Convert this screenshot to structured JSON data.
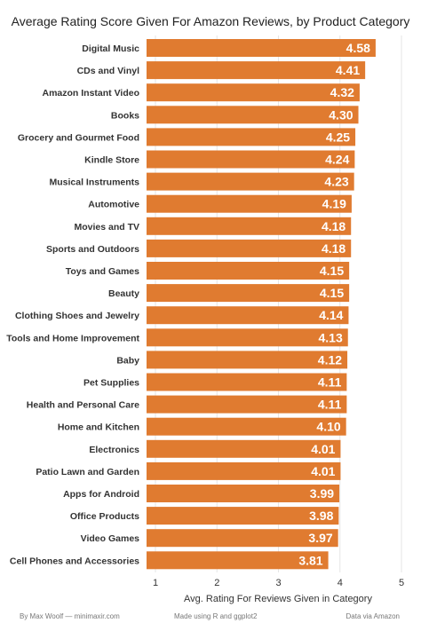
{
  "chart_data": {
    "type": "bar",
    "orientation": "horizontal",
    "title": "Average Rating Score Given For Amazon Reviews, by Product Category",
    "xlabel": "Avg. Rating For Reviews Given in Category",
    "ylabel": "",
    "xlim": [
      1,
      5
    ],
    "x_ticks": [
      1,
      2,
      3,
      4,
      5
    ],
    "grid": true,
    "bar_color": "#e07b30",
    "categories": [
      "Digital Music",
      "CDs and Vinyl",
      "Amazon Instant Video",
      "Books",
      "Grocery and Gourmet Food",
      "Kindle Store",
      "Musical Instruments",
      "Automotive",
      "Movies and TV",
      "Sports and Outdoors",
      "Toys and Games",
      "Beauty",
      "Clothing Shoes and Jewelry",
      "Tools and Home Improvement",
      "Baby",
      "Pet Supplies",
      "Health and Personal Care",
      "Home and Kitchen",
      "Electronics",
      "Patio Lawn and Garden",
      "Apps for Android",
      "Office Products",
      "Video Games",
      "Cell Phones and Accessories"
    ],
    "values": [
      4.58,
      4.41,
      4.32,
      4.3,
      4.25,
      4.24,
      4.23,
      4.19,
      4.18,
      4.18,
      4.15,
      4.15,
      4.14,
      4.13,
      4.12,
      4.11,
      4.11,
      4.1,
      4.01,
      4.01,
      3.99,
      3.98,
      3.97,
      3.81
    ],
    "value_labels": [
      "4.58",
      "4.41",
      "4.32",
      "4.30",
      "4.25",
      "4.24",
      "4.23",
      "4.19",
      "4.18",
      "4.18",
      "4.15",
      "4.15",
      "4.14",
      "4.13",
      "4.12",
      "4.11",
      "4.11",
      "4.10",
      "4.01",
      "4.01",
      "3.99",
      "3.98",
      "3.97",
      "3.81"
    ]
  },
  "footer": {
    "author": "By Max Woolf — minimaxir.com",
    "made_with": "Made using R and ggplot2",
    "source": "Data via Amazon"
  }
}
